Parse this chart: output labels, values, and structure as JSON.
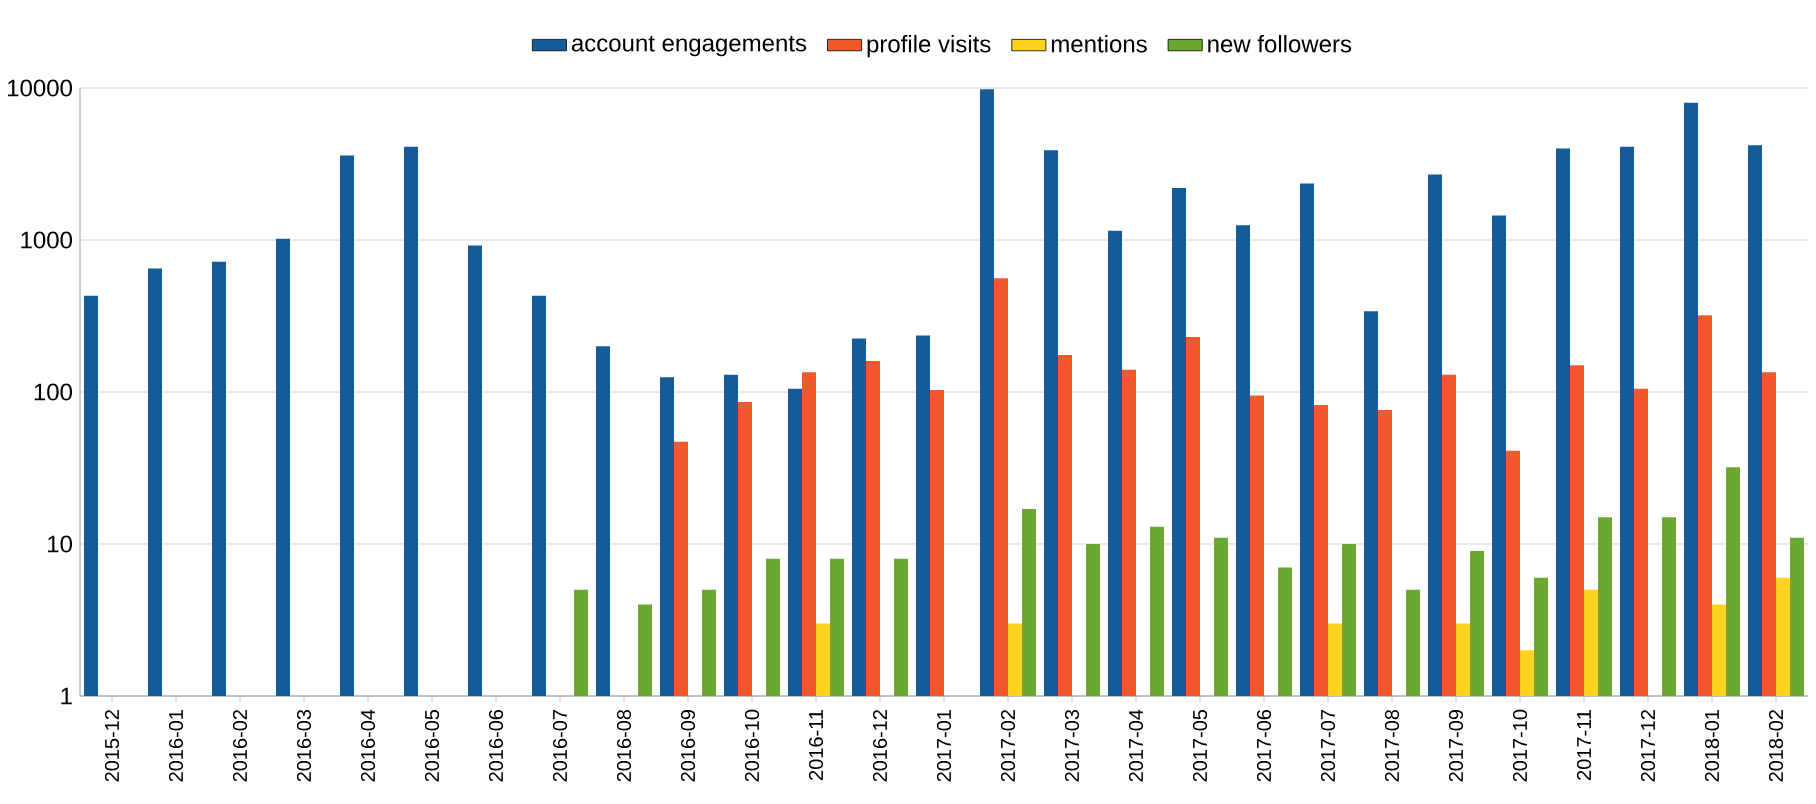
{
  "chart_data": {
    "type": "bar",
    "log": "y",
    "grid": "y",
    "legend": "top",
    "categories": [
      "2015-12",
      "2016-01",
      "2016-02",
      "2016-03",
      "2016-04",
      "2016-05",
      "2016-06",
      "2016-07",
      "2016-08",
      "2016-09",
      "2016-10",
      "2016-11",
      "2016-12",
      "2017-01",
      "2017-02",
      "2017-03",
      "2017-04",
      "2017-05",
      "2017-06",
      "2017-07",
      "2017-08",
      "2017-09",
      "2017-10",
      "2017-11",
      "2017-12",
      "2018-01",
      "2018-02"
    ],
    "ylim": [
      1,
      10000
    ],
    "yticks": [
      1,
      10,
      100,
      1000,
      10000
    ],
    "series": [
      {
        "name": "account engagements",
        "color": "#165a97",
        "values": [
          430,
          650,
          720,
          1020,
          3600,
          4100,
          920,
          430,
          200,
          125,
          130,
          105,
          225,
          235,
          9800,
          3900,
          1150,
          2200,
          1250,
          2350,
          340,
          2700,
          1450,
          4000,
          4100,
          8000,
          4200
        ]
      },
      {
        "name": "profile visits",
        "color": "#f05a28",
        "values": [
          null,
          null,
          null,
          null,
          null,
          null,
          null,
          null,
          null,
          47,
          86,
          135,
          160,
          103,
          560,
          175,
          140,
          230,
          95,
          82,
          76,
          130,
          41,
          150,
          105,
          320,
          135
        ]
      },
      {
        "name": "mentions",
        "color": "#ffd320",
        "values": [
          null,
          null,
          null,
          null,
          null,
          null,
          null,
          null,
          null,
          null,
          null,
          3,
          null,
          null,
          3,
          null,
          null,
          null,
          null,
          3,
          null,
          3,
          2,
          5,
          null,
          4,
          6
        ]
      },
      {
        "name": "new followers",
        "color": "#6aa832",
        "values": [
          null,
          null,
          null,
          null,
          null,
          null,
          null,
          5,
          4,
          5,
          8,
          8,
          8,
          null,
          17,
          10,
          13,
          11,
          7,
          10,
          5,
          9,
          6,
          15,
          15,
          32,
          11
        ]
      }
    ]
  }
}
